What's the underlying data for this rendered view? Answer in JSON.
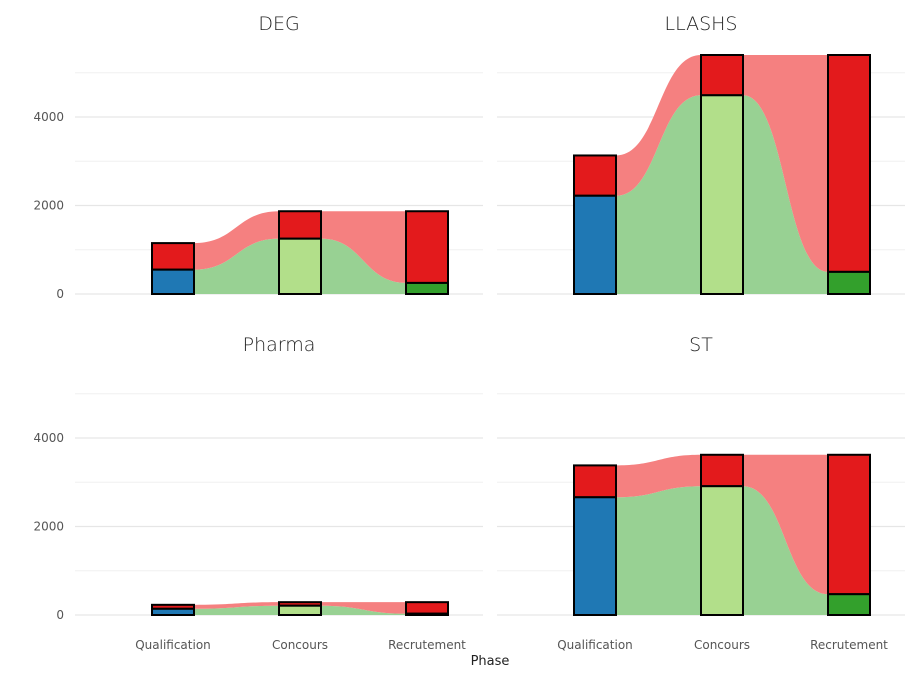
{
  "chart_data": {
    "type": "bar",
    "subtype": "stacked-bar-alluvial-facets",
    "xlabel": "Phase",
    "ylabel": "",
    "categories": [
      "Qualification",
      "Concours",
      "Recrutement"
    ],
    "ylim": [
      0,
      5400
    ],
    "yticks": [
      0,
      2000,
      4000
    ],
    "grid": true,
    "colors": {
      "qualification_pass": "#1f78b4",
      "concours_pass": "#b2df8a",
      "recrutement_pass": "#33a02c",
      "fail": "#e31a1c",
      "flow_pass": "#98d193",
      "flow_fail": "#f58080"
    },
    "panels": [
      {
        "title": "DEG",
        "total": [
          1150,
          1870,
          1870
        ],
        "pass": [
          550,
          1250,
          250
        ]
      },
      {
        "title": "LLASHS",
        "total": [
          3130,
          5400,
          5400
        ],
        "pass": [
          2220,
          4490,
          500
        ]
      },
      {
        "title": "Pharma",
        "total": [
          230,
          290,
          290
        ],
        "pass": [
          140,
          210,
          30
        ]
      },
      {
        "title": "ST",
        "total": [
          3380,
          3620,
          3620
        ],
        "pass": [
          2660,
          2910,
          470
        ]
      }
    ]
  }
}
